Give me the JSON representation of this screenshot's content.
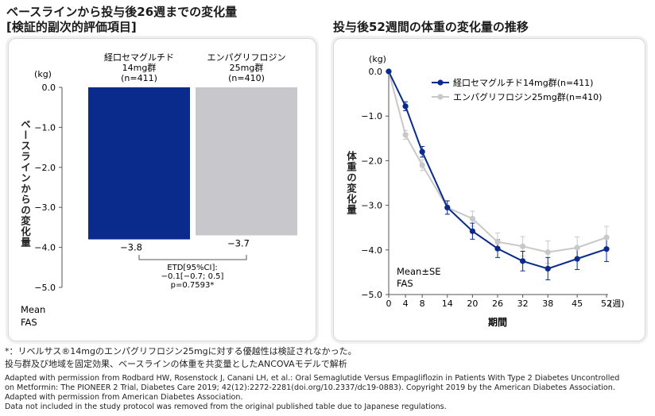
{
  "left": {
    "title_line1": "ベースラインから投与後26週までの変化量",
    "title_line2": "[検証的副次的評価項目]",
    "unit": "(kg)",
    "ylabel": "ベースラインからの変化量",
    "stats_note": [
      "Mean",
      "FAS"
    ],
    "etd": [
      "ETD[95%CI]:",
      "−0.1[−0.7; 0.5]",
      "p=0.7593*"
    ]
  },
  "right": {
    "title": "投与後52週間の体重の変化量の推移",
    "unit": "(kg)",
    "ylabel": "体重の変化量",
    "xlabel": "期間",
    "x_unit": "(週)",
    "stats_note": [
      "Mean±SE",
      "FAS"
    ]
  },
  "chart_data": [
    {
      "type": "bar",
      "categories": [
        "経口セマグルチド 14mg群 (n=411)",
        "エンパグリフロジン 25mg群 (n=410)"
      ],
      "category_lines": [
        [
          "経口セマグルチド",
          "14mg群",
          "(n=411)"
        ],
        [
          "エンパグリフロジン",
          "25mg群",
          "(n=410)"
        ]
      ],
      "values": [
        -3.8,
        -3.7
      ],
      "value_labels": [
        "−3.8",
        "−3.7"
      ],
      "colors": [
        "#0a2a8c",
        "#c8c8cc"
      ],
      "yticks": [
        "0.0",
        "−1.0",
        "−2.0",
        "−3.0",
        "−4.0",
        "−5.0"
      ],
      "ylim": [
        -5.0,
        0.0
      ],
      "ylabel": "ベースラインからの変化量"
    },
    {
      "type": "line",
      "x": [
        0,
        4,
        8,
        14,
        20,
        26,
        32,
        38,
        45,
        52
      ],
      "xticks": [
        "0",
        "4",
        "8",
        "14",
        "20",
        "26",
        "32",
        "38",
        "45",
        "52"
      ],
      "yticks": [
        "0.0",
        "−1.0",
        "−2.0",
        "−3.0",
        "−4.0",
        "−5.0"
      ],
      "ylim": [
        -5.0,
        0.0
      ],
      "xlim": [
        0,
        52
      ],
      "xlabel": "期間",
      "ylabel": "体重の変化量",
      "series": [
        {
          "name": "経口セマグルチド14mg群(n=411)",
          "color": "#0a2a8c",
          "values": [
            0.0,
            -0.78,
            -1.8,
            -3.05,
            -3.58,
            -3.97,
            -4.25,
            -4.42,
            -4.2,
            -3.98
          ],
          "se": [
            0,
            0.1,
            0.12,
            0.15,
            0.18,
            0.2,
            0.22,
            0.25,
            0.24,
            0.28
          ]
        },
        {
          "name": "エンパグリフロジン25mg群(n=410)",
          "color": "#c8c8c8",
          "values": [
            0.0,
            -1.42,
            -2.1,
            -3.05,
            -3.3,
            -3.82,
            -3.92,
            -4.05,
            -3.95,
            -3.72
          ],
          "se": [
            0,
            0.1,
            0.12,
            0.15,
            0.17,
            0.2,
            0.22,
            0.25,
            0.24,
            0.25
          ]
        }
      ]
    }
  ],
  "footnotes": [
    "*：リベルサス®14mgのエンパグリフロジン25mgに対する優越性は検証されなかった。",
    "投与群及び地域を固定効果、ベースラインの体重を共変量としたANCOVAモデルで解析"
  ],
  "citation": [
    "Adapted with permission from Rodbard HW, Rosenstock J, Canani LH, et al.: Oral Semaglutide Versus Empagliflozin in Patients With Type 2 Diabetes Uncontrolled",
    "on Metformin: The PIONEER 2 Trial, Diabetes Care 2019; 42(12):2272-2281(doi.org/10.2337/dc19-0883). Copyright 2019 by the American Diabetes Association.",
    "Adapted with permission from American Diabetes Association.",
    "Data not included in the study protocol was removed from the original published table due to Japanese regulations."
  ]
}
